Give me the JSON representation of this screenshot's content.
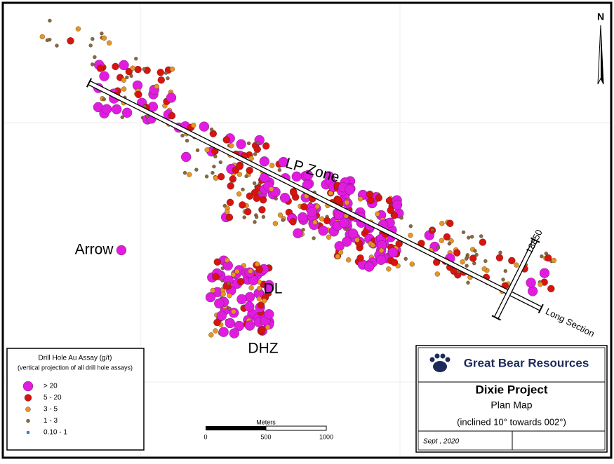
{
  "map": {
    "north": "N",
    "zones": [
      "LP Zone",
      "Arrow",
      "DL",
      "DHZ"
    ],
    "section_label": "18850",
    "long_section_label": "Long Section"
  },
  "legend": {
    "title": "Drill Hole Au Assay (g/t)",
    "subtitle": "(vertical projection of all drill hole assays)",
    "entries": [
      {
        "label": "> 20",
        "color": "#e21be0"
      },
      {
        "label": "5 - 20",
        "color": "#d8140f"
      },
      {
        "label": "3 - 5",
        "color": "#e89422"
      },
      {
        "label": "1 - 3",
        "color": "#8a6a3a"
      },
      {
        "label": "0.10 - 1",
        "color": "#2a8fd0"
      }
    ]
  },
  "scale_bar": {
    "title": "Meters",
    "ticks": [
      0,
      500,
      1000
    ]
  },
  "title_block": {
    "company": "Great Bear Resources",
    "project": "Dixie Project",
    "map_type": "Plan Map",
    "note": "(inclined 10° towards 002°)",
    "date": "Sept , 2020"
  }
}
